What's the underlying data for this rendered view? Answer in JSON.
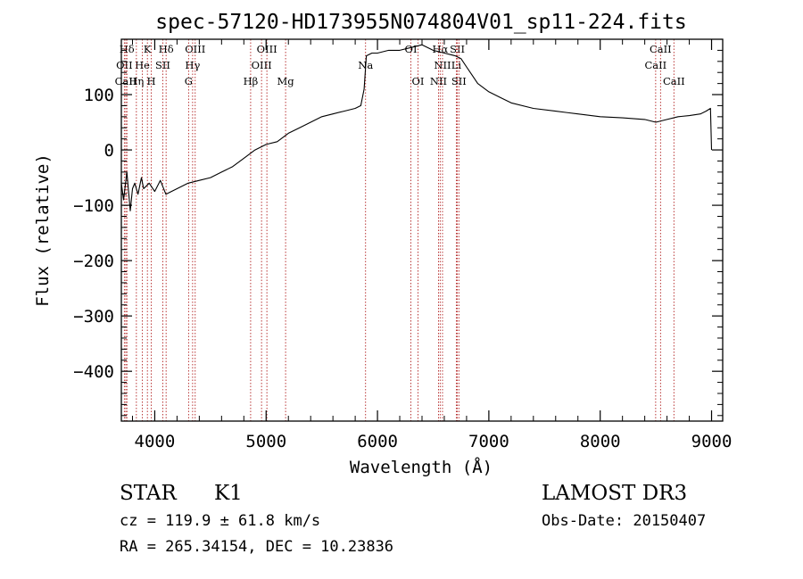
{
  "chart_data": {
    "type": "line",
    "title": "spec-57120-HD173955N074804V01_sp11-224.fits",
    "xlabel": "Wavelength (Å)",
    "ylabel": "Flux (relative)",
    "xlim": [
      3700,
      9100
    ],
    "ylim": [
      -490,
      200
    ],
    "xticks": [
      4000,
      5000,
      6000,
      7000,
      8000,
      9000
    ],
    "xtick_labels": [
      "4000",
      "5000",
      "6000",
      "7000",
      "8000",
      "9000"
    ],
    "yticks": [
      -400,
      -300,
      -200,
      -100,
      0,
      100
    ],
    "ytick_labels": [
      "−400",
      "−300",
      "−200",
      "−100",
      "0",
      "100"
    ],
    "series": [
      {
        "name": "spectrum",
        "color": "#000000",
        "x": [
          3700,
          3720,
          3750,
          3780,
          3800,
          3820,
          3850,
          3880,
          3900,
          3950,
          4000,
          4050,
          4100,
          4200,
          4300,
          4400,
          4500,
          4600,
          4700,
          4800,
          4900,
          5000,
          5100,
          5200,
          5300,
          5400,
          5500,
          5600,
          5700,
          5800,
          5850,
          5880,
          5900,
          5950,
          6000,
          6100,
          6200,
          6300,
          6400,
          6500,
          6600,
          6700,
          6750,
          6800,
          6850,
          6900,
          7000,
          7100,
          7200,
          7400,
          7600,
          7800,
          8000,
          8200,
          8400,
          8500,
          8600,
          8700,
          8800,
          8900,
          8950,
          8990,
          9000
        ],
        "y": [
          -60,
          -90,
          -40,
          -110,
          -70,
          -60,
          -80,
          -50,
          -70,
          -60,
          -75,
          -55,
          -80,
          -70,
          -60,
          -55,
          -50,
          -40,
          -30,
          -15,
          0,
          10,
          15,
          30,
          40,
          50,
          60,
          65,
          70,
          75,
          80,
          110,
          170,
          175,
          175,
          180,
          180,
          185,
          190,
          180,
          175,
          170,
          165,
          150,
          135,
          120,
          105,
          95,
          85,
          75,
          70,
          65,
          60,
          58,
          55,
          50,
          55,
          60,
          62,
          65,
          70,
          75,
          0
        ]
      }
    ],
    "lines": [
      {
        "name": "Hδ",
        "wl": 3750,
        "row": 0
      },
      {
        "name": "OII",
        "wl": 3727,
        "row": 1
      },
      {
        "name": "CaII",
        "wl": 3740,
        "row": 2
      },
      {
        "name": "K",
        "wl": 3934,
        "row": 0
      },
      {
        "name": "He",
        "wl": 3889,
        "row": 1
      },
      {
        "name": "Hη",
        "wl": 3835,
        "row": 2
      },
      {
        "name": "Hδ",
        "wl": 4102,
        "row": 0
      },
      {
        "name": "SII",
        "wl": 4072,
        "row": 1
      },
      {
        "name": "H",
        "wl": 3969,
        "row": 2
      },
      {
        "name": "OIII",
        "wl": 4363,
        "row": 0
      },
      {
        "name": "Hγ",
        "wl": 4340,
        "row": 1
      },
      {
        "name": "G",
        "wl": 4304,
        "row": 2
      },
      {
        "name": "OIII",
        "wl": 5007,
        "row": 0
      },
      {
        "name": "OIII",
        "wl": 4959,
        "row": 1
      },
      {
        "name": "Hβ",
        "wl": 4861,
        "row": 2
      },
      {
        "name": "Mg",
        "wl": 5175,
        "row": 2
      },
      {
        "name": "Na",
        "wl": 5893,
        "row": 1
      },
      {
        "name": "OI",
        "wl": 6300,
        "row": 0
      },
      {
        "name": "OI",
        "wl": 6364,
        "row": 2
      },
      {
        "name": "Hα",
        "wl": 6563,
        "row": 0
      },
      {
        "name": "NII",
        "wl": 6584,
        "row": 1
      },
      {
        "name": "NII",
        "wl": 6548,
        "row": 2
      },
      {
        "name": "SII",
        "wl": 6717,
        "row": 0
      },
      {
        "name": "Li",
        "wl": 6708,
        "row": 1
      },
      {
        "name": "SII",
        "wl": 6731,
        "row": 2
      },
      {
        "name": "CaII",
        "wl": 8542,
        "row": 0
      },
      {
        "name": "CaII",
        "wl": 8498,
        "row": 1
      },
      {
        "name": "CaII",
        "wl": 8662,
        "row": 2
      }
    ]
  },
  "info": {
    "object_class": "STAR",
    "subclass": "K1",
    "survey": "LAMOST DR3",
    "cz": "cz = 119.9 ± 61.8 km/s",
    "obs_date": "Obs-Date: 20150407",
    "radec": "RA = 265.34154, DEC =  10.23836"
  },
  "colors": {
    "axis": "#000000",
    "spectrum": "#000000",
    "line_marker": "#b22222"
  }
}
